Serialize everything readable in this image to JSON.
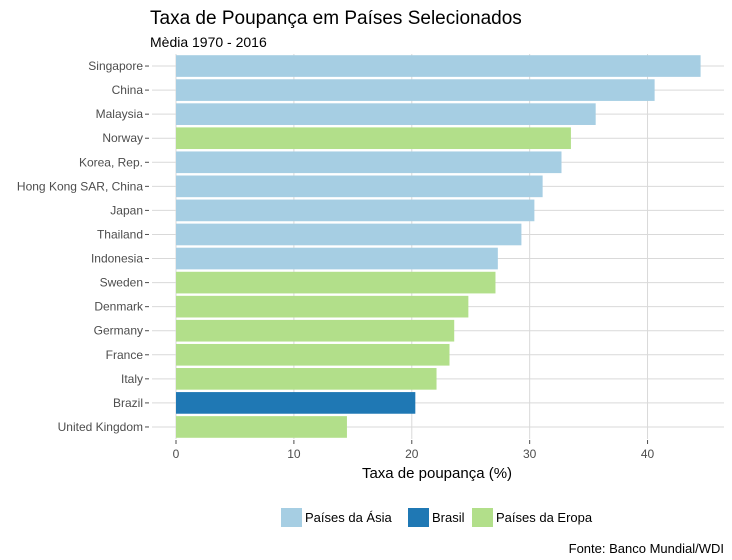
{
  "chart_data": {
    "type": "bar",
    "orientation": "horizontal",
    "title": "Taxa de Poupança em Países Selecionados",
    "subtitle": "Mèdia 1970 - 2016",
    "xlabel": "Taxa de poupança (%)",
    "ylabel": "",
    "xlim": [
      0,
      46
    ],
    "xticks": [
      0,
      10,
      20,
      30,
      40
    ],
    "categories": [
      "Singapore",
      "China",
      "Malaysia",
      "Norway",
      "Korea, Rep.",
      "Hong Kong SAR, China",
      "Japan",
      "Thailand",
      "Indonesia",
      "Sweden",
      "Denmark",
      "Germany",
      "France",
      "Italy",
      "Brazil",
      "United Kingdom"
    ],
    "values": [
      44.5,
      40.6,
      35.6,
      33.5,
      32.7,
      31.1,
      30.4,
      29.3,
      27.3,
      27.1,
      24.8,
      23.6,
      23.2,
      22.1,
      20.3,
      14.5
    ],
    "groups": [
      "asia",
      "asia",
      "asia",
      "europe",
      "asia",
      "asia",
      "asia",
      "asia",
      "asia",
      "europe",
      "europe",
      "europe",
      "europe",
      "europe",
      "brasil",
      "europe"
    ],
    "legend": [
      {
        "key": "asia",
        "label": "Países da Ásia",
        "color": "#a6cee3"
      },
      {
        "key": "brasil",
        "label": "Brasil",
        "color": "#1f78b4"
      },
      {
        "key": "europe",
        "label": "Países da Eropa",
        "color": "#b2df8a"
      }
    ],
    "legend_position": "bottom",
    "grid": true
  },
  "caption": "Fonte: Banco Mundial/WDI"
}
